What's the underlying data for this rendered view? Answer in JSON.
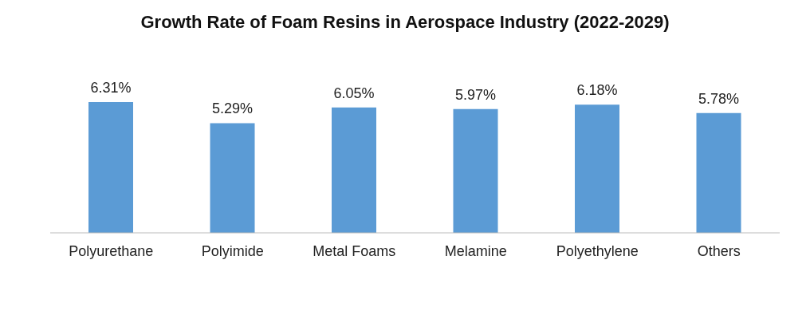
{
  "chart_data": {
    "type": "bar",
    "title": "Growth Rate of Foam Resins in Aerospace Industry (2022-2029)",
    "categories": [
      "Polyurethane",
      "Polyimide",
      "Metal Foams",
      "Melamine",
      "Polyethylene",
      "Others"
    ],
    "values": [
      6.31,
      5.29,
      6.05,
      5.97,
      6.18,
      5.78
    ],
    "value_labels": [
      "6.31%",
      "5.29%",
      "6.05%",
      "5.97%",
      "6.18%",
      "5.78%"
    ],
    "color": "#5b9bd5",
    "tick_labels": "x"
  }
}
